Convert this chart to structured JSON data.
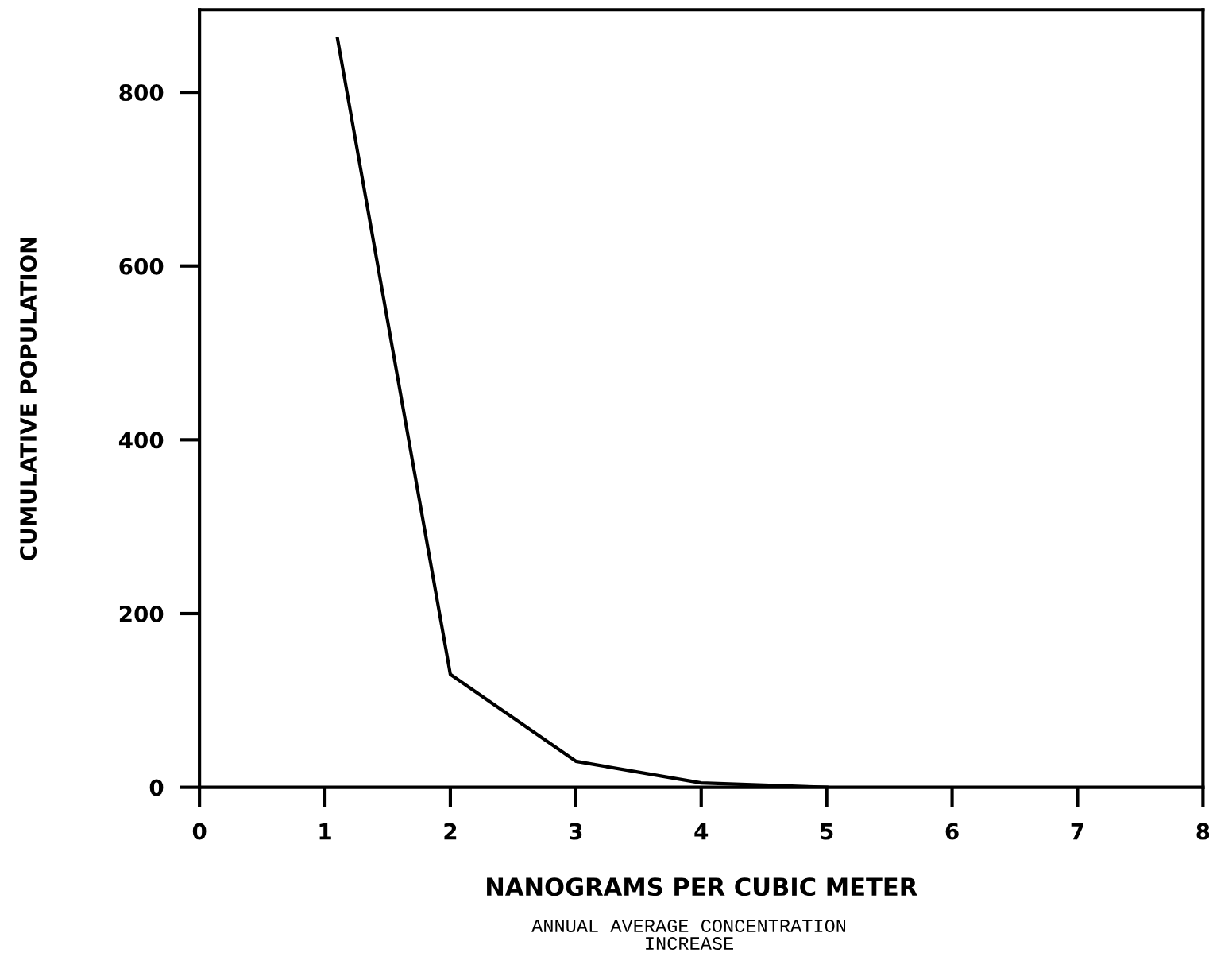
{
  "chart_data": {
    "type": "line",
    "xlabel": "NANOGRAMS PER CUBIC METER",
    "ylabel": "CUMULATIVE POPULATION",
    "annotations": [
      "ANNUAL AVERAGE CONCENTRATION\nINCREASE"
    ],
    "x": [
      1.1,
      2,
      3,
      4,
      5
    ],
    "series": [
      {
        "color": "#000000",
        "values": [
          862,
          130,
          30,
          5,
          0
        ]
      }
    ],
    "xlim": [
      0,
      8
    ],
    "ylim": [
      0,
      895
    ],
    "xticks": [
      0,
      1,
      2,
      3,
      4,
      5,
      6,
      7,
      8
    ],
    "yticks": [
      0,
      200,
      400,
      600,
      800
    ],
    "grid": false,
    "legend": false,
    "marker": "none",
    "line_style": "solid"
  }
}
